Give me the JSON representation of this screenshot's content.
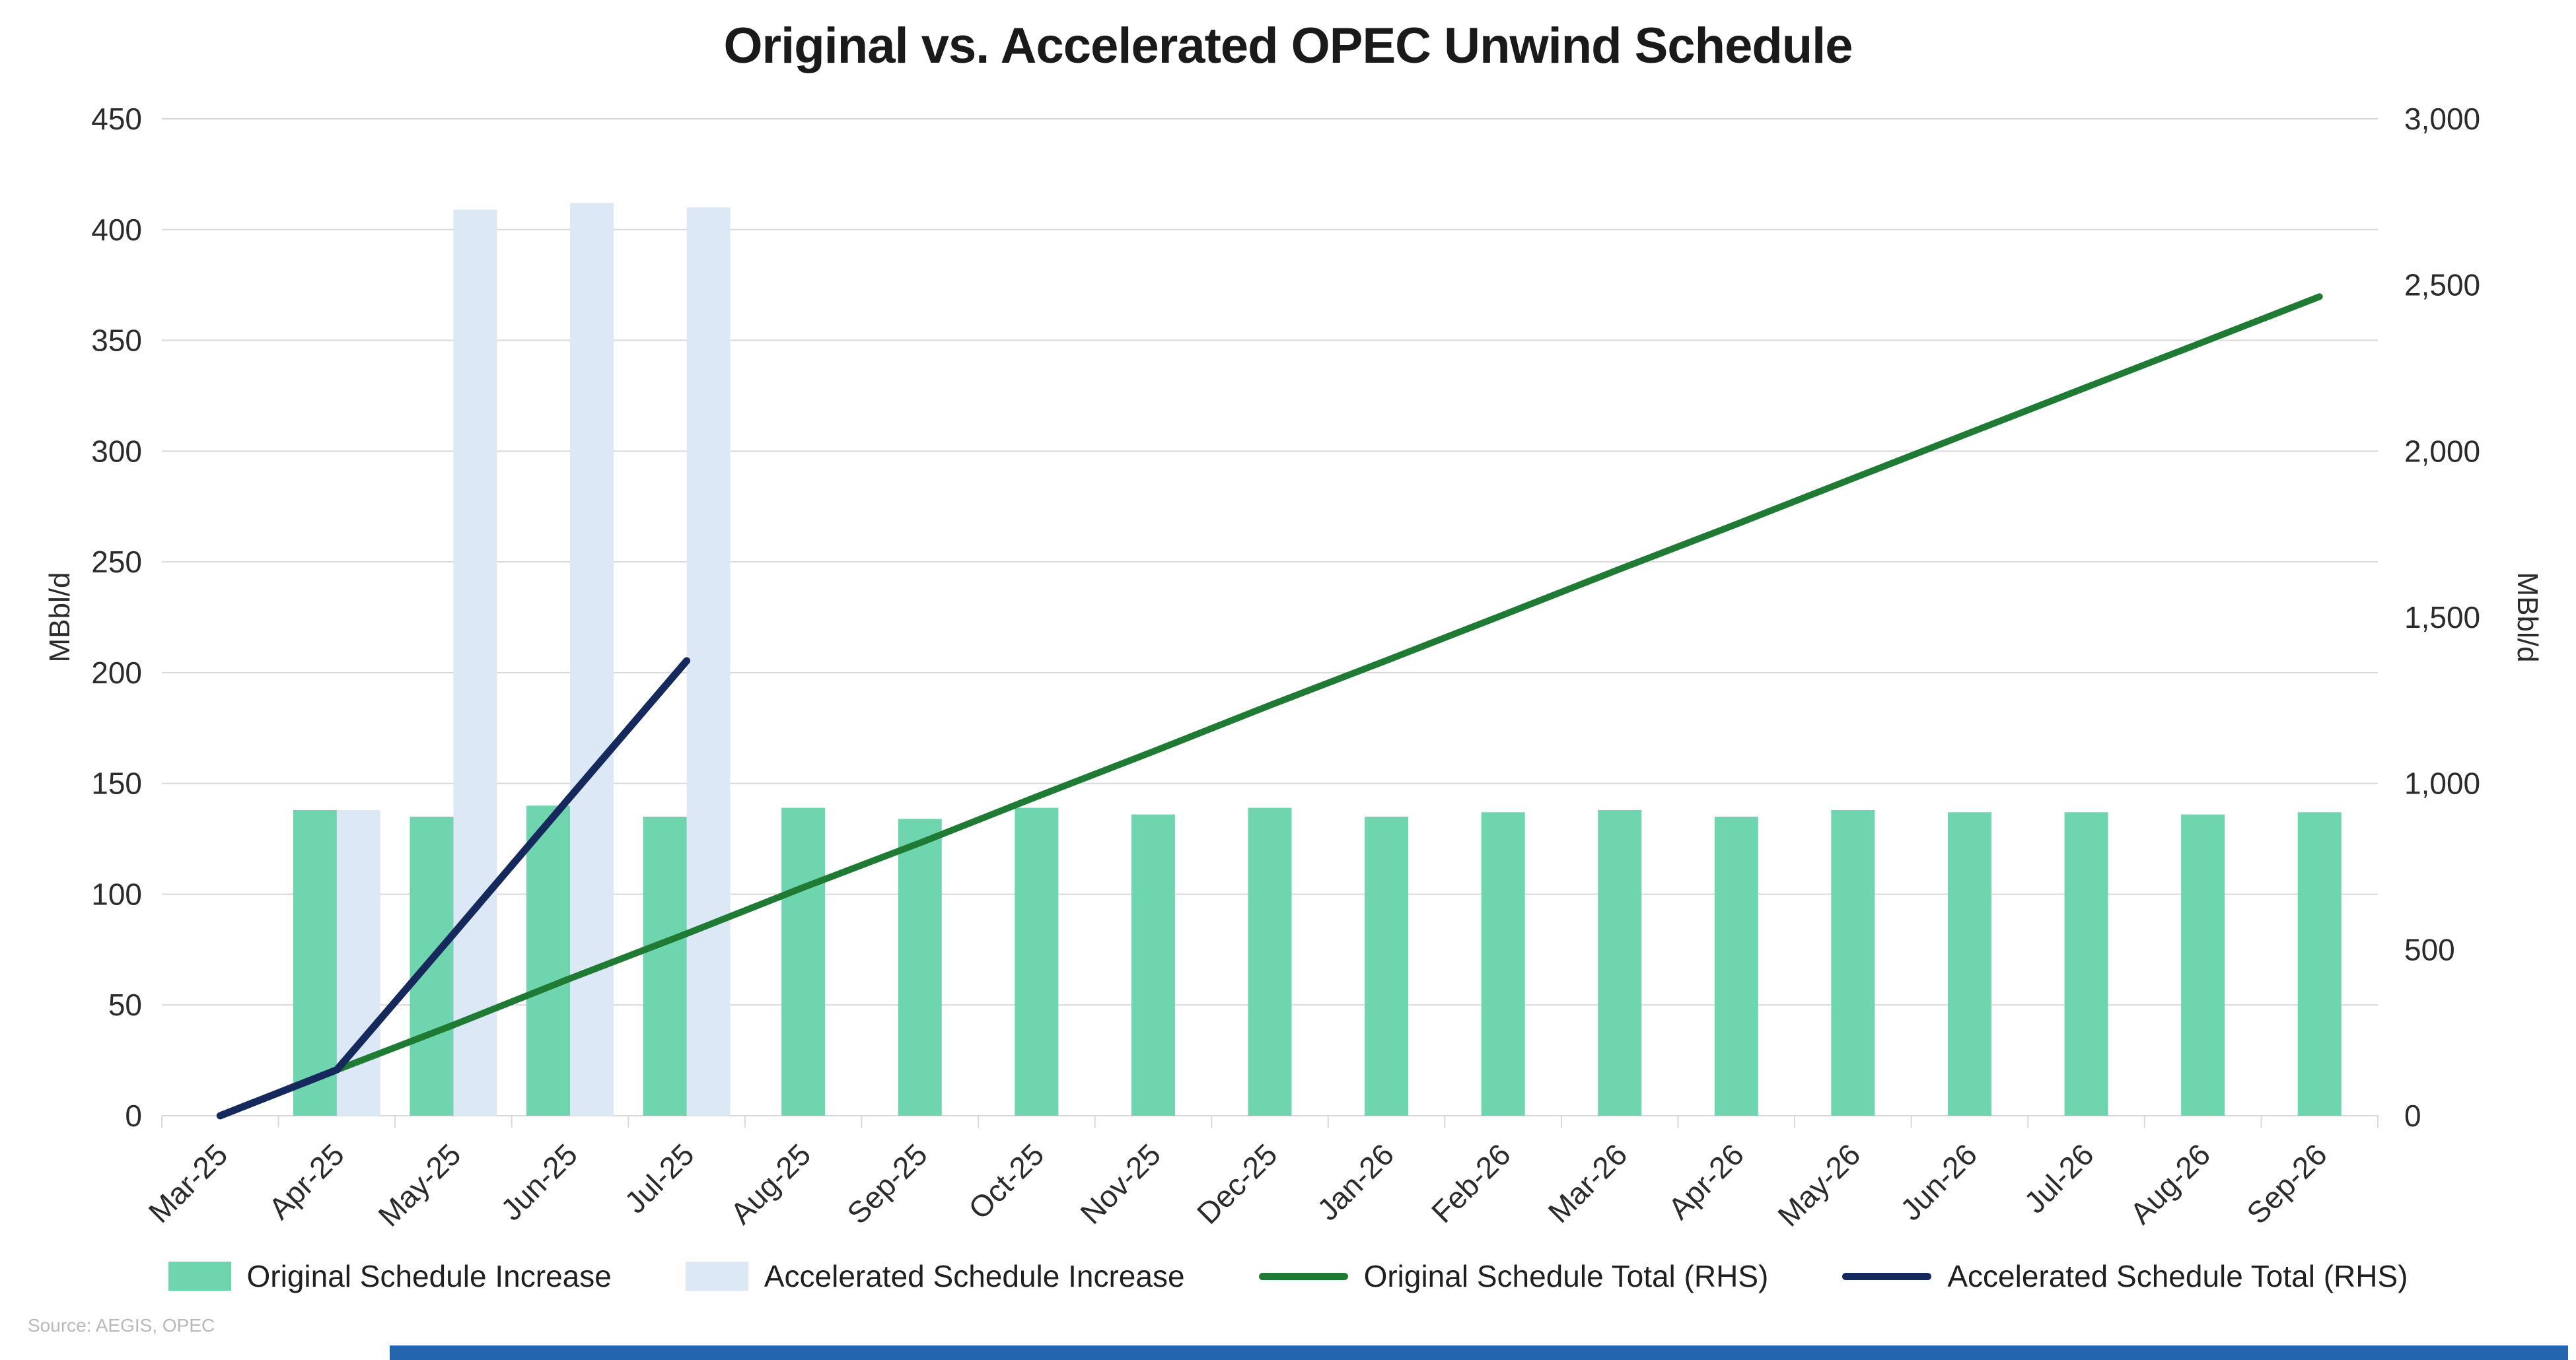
{
  "title": "Original vs. Accelerated OPEC Unwind Schedule",
  "source_note": "Source: AEGIS, OPEC",
  "colors": {
    "original_bar": "#6ED5AF",
    "accelerated_bar": "#DCE8F6",
    "original_line": "#1F7A34",
    "accelerated_line": "#16295C",
    "gridline": "#D9D9D9",
    "axis_text": "#2B2B2B",
    "title_text": "#1A1A1A",
    "legend_text": "#1F1F1F",
    "source_text": "#B8B8B8",
    "footer_strip": "#2565AE"
  },
  "chart_data": {
    "type": "bar+line combo",
    "title": "Original vs. Accelerated OPEC Unwind Schedule",
    "categories": [
      "Mar-25",
      "Apr-25",
      "May-25",
      "Jun-25",
      "Jul-25",
      "Aug-25",
      "Sep-25",
      "Oct-25",
      "Nov-25",
      "Dec-25",
      "Jan-26",
      "Feb-26",
      "Mar-26",
      "Apr-26",
      "May-26",
      "Jun-26",
      "Jul-26",
      "Aug-26",
      "Sep-26"
    ],
    "left_axis": {
      "label": "MBbl/d",
      "min": 0,
      "max": 450,
      "step": 50
    },
    "right_axis": {
      "label": "MBbl/d",
      "min": 0,
      "max": 3000,
      "step": 500
    },
    "grid": true,
    "legend_position": "bottom",
    "series": [
      {
        "name": "Original Schedule Increase",
        "type": "bar",
        "axis": "left",
        "color_key": "original_bar",
        "values": [
          null,
          138,
          135,
          140,
          135,
          139,
          134,
          139,
          136,
          139,
          135,
          137,
          138,
          135,
          138,
          137,
          137,
          136,
          137
        ]
      },
      {
        "name": "Accelerated Schedule Increase",
        "type": "bar",
        "axis": "left",
        "color_key": "accelerated_bar",
        "values": [
          null,
          138,
          409,
          412,
          410,
          null,
          null,
          null,
          null,
          null,
          null,
          null,
          null,
          null,
          null,
          null,
          null,
          null,
          null
        ]
      },
      {
        "name": "Original Schedule Total (RHS)",
        "type": "line",
        "axis": "right",
        "color_key": "original_line",
        "values": [
          0,
          138,
          273,
          413,
          548,
          687,
          821,
          960,
          1096,
          1235,
          1370,
          1507,
          1645,
          1780,
          1918,
          2055,
          2192,
          2328,
          2465
        ]
      },
      {
        "name": "Accelerated Schedule Total (RHS)",
        "type": "line",
        "axis": "right",
        "color_key": "accelerated_line",
        "values": [
          0,
          138,
          547,
          959,
          1369,
          null,
          null,
          null,
          null,
          null,
          null,
          null,
          null,
          null,
          null,
          null,
          null,
          null,
          null
        ]
      }
    ]
  },
  "legend": [
    {
      "label": "Original Schedule Increase",
      "swatch": "bar",
      "color_key": "original_bar"
    },
    {
      "label": "Accelerated Schedule Increase",
      "swatch": "bar",
      "color_key": "accelerated_bar"
    },
    {
      "label": "Original Schedule Total (RHS)",
      "swatch": "line",
      "color_key": "original_line"
    },
    {
      "label": "Accelerated Schedule Total (RHS)",
      "swatch": "line",
      "color_key": "accelerated_line"
    }
  ]
}
